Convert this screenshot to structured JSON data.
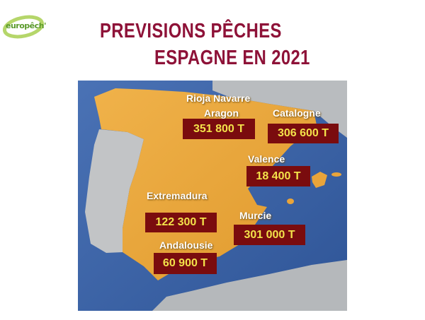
{
  "logo": {
    "text": "europêch'"
  },
  "title": {
    "line1": "PREVISIONS PÊCHES",
    "line2": "ESPAGNE EN 2021"
  },
  "colors": {
    "title": "#8e1238",
    "spain": "#e9a43a",
    "sea": "#3d64a8",
    "land_other": "#b9bcbf",
    "value_box": "#7a0c0e",
    "value_text": "#f3e24a"
  },
  "regions": [
    {
      "name": "Rioja Navarre"
    },
    {
      "name": "Aragon",
      "value": "351 800 T"
    },
    {
      "name": "Catalogne",
      "value": "306 600 T"
    },
    {
      "name": "Valence",
      "value": "18 400 T"
    },
    {
      "name": "Extremadura",
      "value": "122 300 T"
    },
    {
      "name": "Murcie",
      "value": "301 000 T"
    },
    {
      "name": "Andalousie",
      "value": "60 900 T"
    }
  ]
}
